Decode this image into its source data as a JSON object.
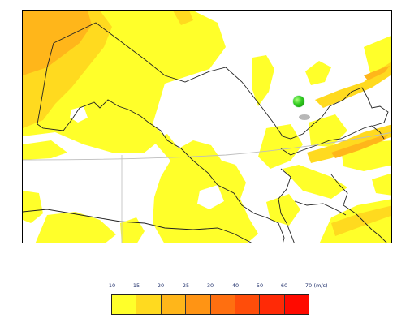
{
  "legend": {
    "ticks": [
      "10",
      "15",
      "20",
      "25",
      "30",
      "40",
      "50",
      "60",
      "70",
      "(m/s)"
    ],
    "colors": [
      "#ffff2a",
      "#ffda1f",
      "#ffb61a",
      "#ff9414",
      "#ff6f10",
      "#ff4d0a",
      "#ff2a06",
      "#ff0a00"
    ]
  },
  "map": {
    "marker_icon": "green-pin-icon"
  }
}
